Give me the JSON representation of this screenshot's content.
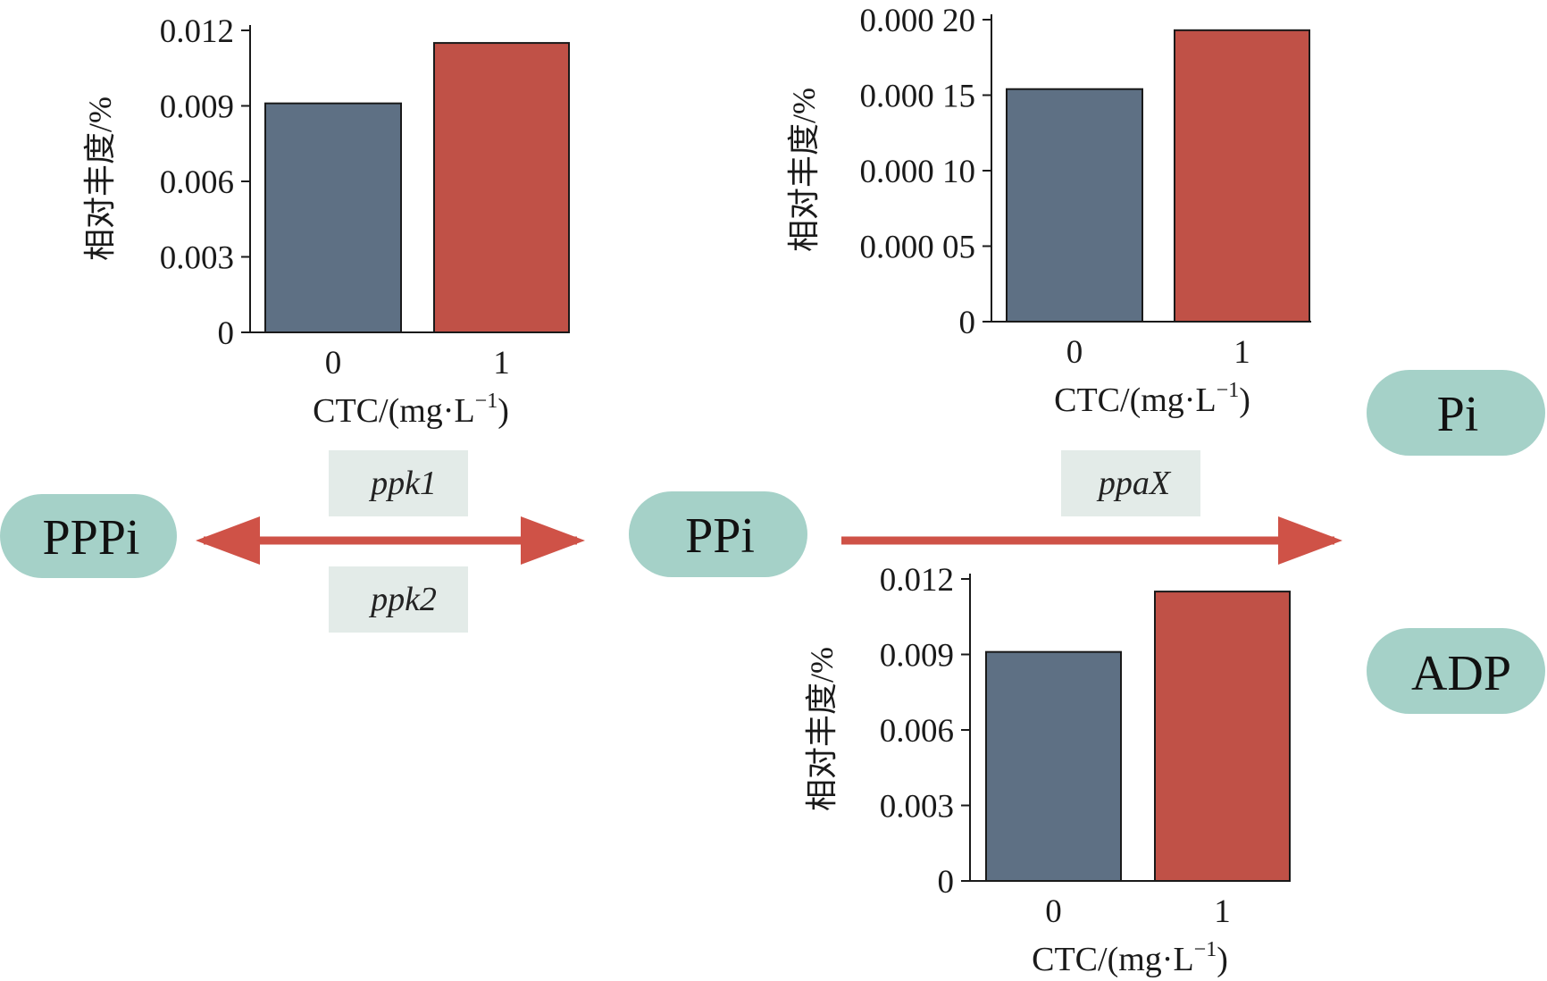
{
  "colors": {
    "bar_0": "#5e7084",
    "bar_1": "#c05147",
    "node_fill": "#a5d1c8",
    "gene_box": "#e3ebe8",
    "arrow": "#cf5247",
    "axis": "#1a1a1a"
  },
  "nodes": {
    "pppi": "PPPi",
    "ppi": "PPi",
    "pi": "Pi",
    "adp": "ADP"
  },
  "genes": {
    "ppk1": "ppk1",
    "ppk2": "ppk2",
    "ppax": "ppaX"
  },
  "chart_data": [
    {
      "id": "ppk",
      "type": "bar",
      "categories": [
        "0",
        "1"
      ],
      "values": [
        0.0091,
        0.0115
      ],
      "ylim": [
        0,
        0.012
      ],
      "yticks": [
        0,
        0.003,
        0.006,
        0.009,
        0.012
      ],
      "ytick_labels": [
        "0",
        "0.003",
        "0.006",
        "0.009",
        "0.012"
      ],
      "ylabel": "相对丰度/%",
      "xlabel": "CTC/(mg·L",
      "xlabel_sup": "−1",
      "xlabel_close": ")",
      "grid": false
    },
    {
      "id": "ppax",
      "type": "bar",
      "categories": [
        "0",
        "1"
      ],
      "values": [
        0.000154,
        0.000193
      ],
      "ylim": [
        0,
        0.0002
      ],
      "yticks": [
        0,
        5e-05,
        0.0001,
        0.00015,
        0.0002
      ],
      "ytick_labels": [
        "0",
        "0.000 05",
        "0.000 10",
        "0.000 15",
        "0.000 20"
      ],
      "ylabel": "相对丰度/%",
      "xlabel": "CTC/(mg·L",
      "xlabel_sup": "−1",
      "xlabel_close": ")",
      "grid": false
    },
    {
      "id": "adp",
      "type": "bar",
      "categories": [
        "0",
        "1"
      ],
      "values": [
        0.0091,
        0.0115
      ],
      "ylim": [
        0,
        0.012
      ],
      "yticks": [
        0,
        0.003,
        0.006,
        0.009,
        0.012
      ],
      "ytick_labels": [
        "0",
        "0.003",
        "0.006",
        "0.009",
        "0.012"
      ],
      "ylabel": "相对丰度/%",
      "xlabel": "CTC/(mg·L",
      "xlabel_sup": "−1",
      "xlabel_close": ")",
      "grid": false
    }
  ]
}
